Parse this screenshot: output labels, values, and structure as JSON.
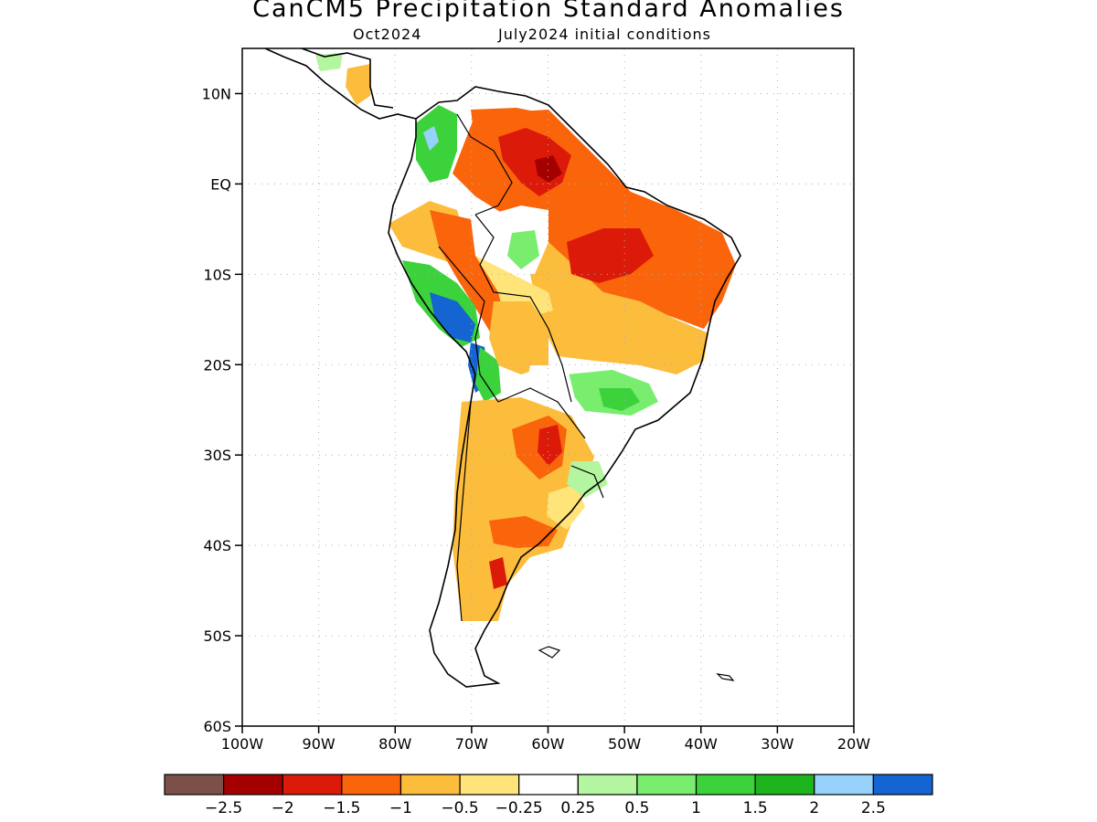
{
  "title": "CanCM5 Precipitation Standard Anomalies",
  "subtitle": {
    "forecast_month": "Oct2024",
    "initial_conditions": "July2024 initial conditions"
  },
  "map": {
    "lon_range": [
      -100,
      -20
    ],
    "lat_range": [
      -60,
      15
    ],
    "lat_ticks": [
      {
        "value": 10,
        "label": "10N"
      },
      {
        "value": 0,
        "label": "EQ"
      },
      {
        "value": -10,
        "label": "10S"
      },
      {
        "value": -20,
        "label": "20S"
      },
      {
        "value": -30,
        "label": "30S"
      },
      {
        "value": -40,
        "label": "40S"
      },
      {
        "value": -50,
        "label": "50S"
      },
      {
        "value": -60,
        "label": "60S"
      }
    ],
    "lon_ticks": [
      {
        "value": -100,
        "label": "100W"
      },
      {
        "value": -90,
        "label": "90W"
      },
      {
        "value": -80,
        "label": "80W"
      },
      {
        "value": -70,
        "label": "70W"
      },
      {
        "value": -60,
        "label": "60W"
      },
      {
        "value": -50,
        "label": "50W"
      },
      {
        "value": -40,
        "label": "40W"
      },
      {
        "value": -30,
        "label": "30W"
      },
      {
        "value": -20,
        "label": "20W"
      }
    ],
    "grid": true
  },
  "colorbar": {
    "colors": [
      "#7a5048",
      "#a50000",
      "#dc1a0a",
      "#fa640a",
      "#fcbc3c",
      "#ffe47a",
      "#ffffff",
      "#b4f5a0",
      "#78ed6e",
      "#3cd23c",
      "#1eb41e",
      "#96d2fa",
      "#1464d2"
    ],
    "labels": [
      "−2.5",
      "−2",
      "−1.5",
      "−1",
      "−0.5",
      "−0.25",
      "0.25",
      "0.5",
      "1",
      "1.5",
      "2",
      "2.5"
    ]
  }
}
